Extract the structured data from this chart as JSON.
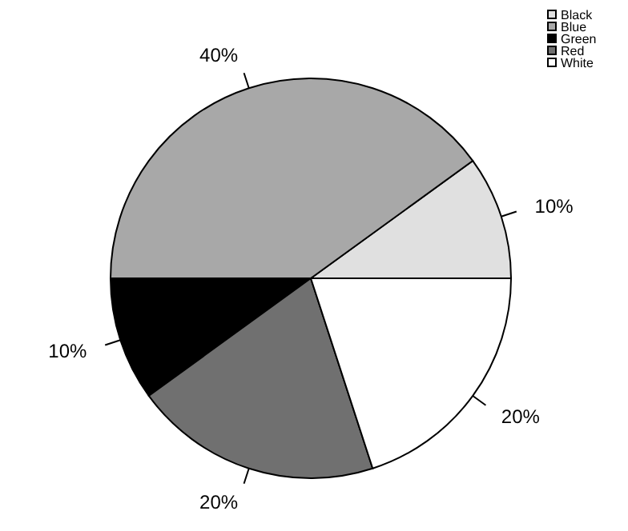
{
  "chart_data": {
    "type": "pie",
    "categories": [
      "Black",
      "Blue",
      "Green",
      "Red",
      "White"
    ],
    "values": [
      10,
      40,
      10,
      20,
      20
    ],
    "colors": [
      "#e0e0e0",
      "#a8a8a8",
      "#000000",
      "#707070",
      "#ffffff"
    ],
    "value_labels": [
      "10%",
      "40%",
      "10%",
      "20%",
      "20%"
    ],
    "legend": "top right"
  }
}
